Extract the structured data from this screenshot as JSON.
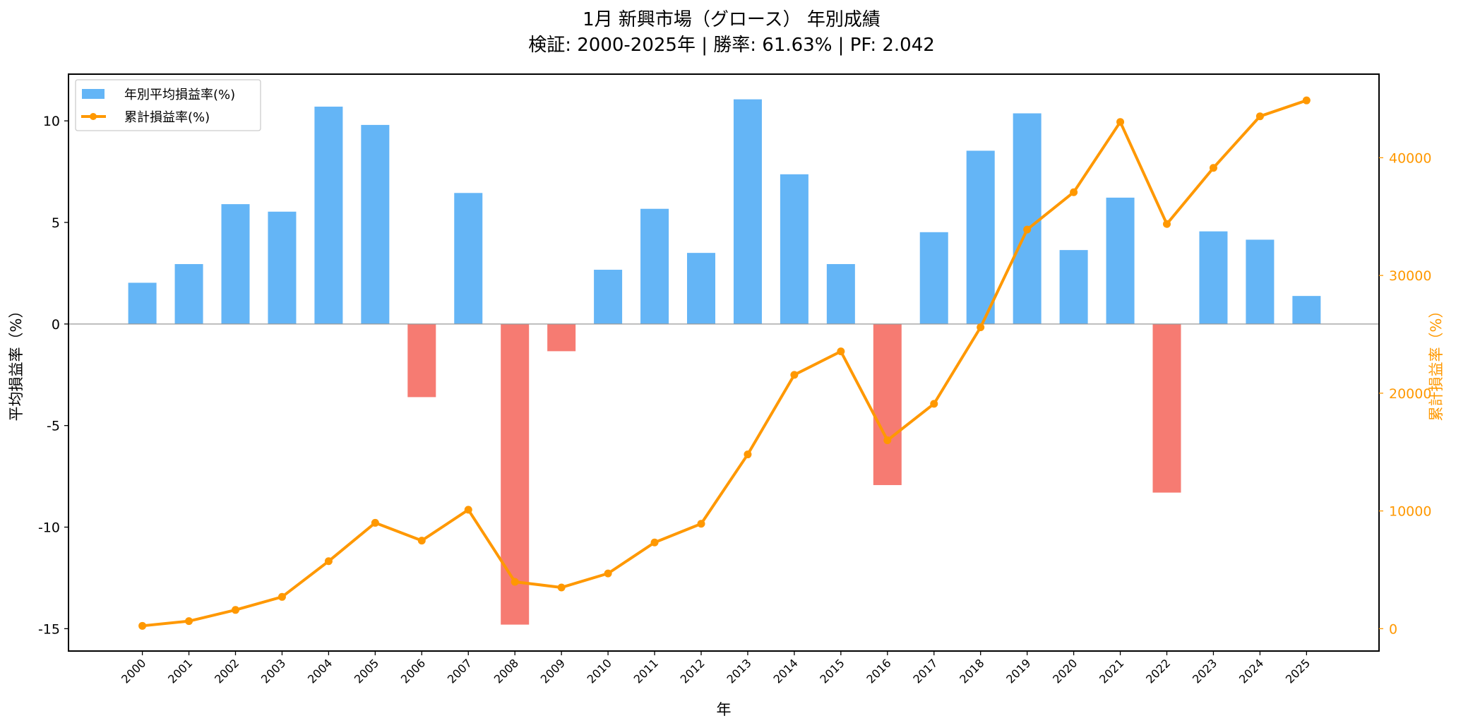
{
  "chart_data": {
    "type": "bar+line",
    "title": "1月 新興市場（グロース） 年別成績",
    "subtitle": "検証: 2000-2025年 | 勝率: 61.63% | PF: 2.042",
    "xlabel": "年",
    "ylabel_left": "平均損益率（%）",
    "ylabel_right": "累計損益率（%）",
    "ylim_left": [
      -16.1,
      12.3
    ],
    "ylim_right": [
      -1900,
      47100
    ],
    "yticks_left": [
      -15,
      -10,
      -5,
      0,
      5,
      10
    ],
    "yticks_right": [
      0,
      10000,
      20000,
      30000,
      40000
    ],
    "grid": false,
    "legend_position": "top-left",
    "categories": [
      "2000",
      "2001",
      "2002",
      "2003",
      "2004",
      "2005",
      "2006",
      "2007",
      "2008",
      "2009",
      "2010",
      "2011",
      "2012",
      "2013",
      "2014",
      "2015",
      "2016",
      "2017",
      "2018",
      "2019",
      "2020",
      "2021",
      "2022",
      "2023",
      "2024",
      "2025"
    ],
    "series": [
      {
        "name": "年別平均損益率(%)",
        "type": "bar",
        "axis": "left",
        "values": [
          2.03,
          2.95,
          5.9,
          5.53,
          10.7,
          9.8,
          -3.6,
          6.45,
          -14.8,
          -1.34,
          2.67,
          5.67,
          3.5,
          11.06,
          7.37,
          2.95,
          -7.93,
          4.52,
          8.53,
          10.37,
          3.64,
          6.22,
          -8.3,
          4.56,
          4.15,
          1.38
        ]
      },
      {
        "name": "累計損益率(%)",
        "type": "line",
        "axis": "right",
        "values": [
          240,
          640,
          1590,
          2700,
          5730,
          8990,
          7480,
          10100,
          3980,
          3500,
          4690,
          7320,
          8910,
          14800,
          21560,
          23550,
          16000,
          19100,
          25600,
          33900,
          37070,
          43040,
          34370,
          39140,
          43520,
          44870
        ]
      }
    ],
    "colors": {
      "positive_bar": "#64B5F6",
      "negative_bar": "#F67B72",
      "line": "#FF9800",
      "right_axis": "#FF9800"
    }
  }
}
